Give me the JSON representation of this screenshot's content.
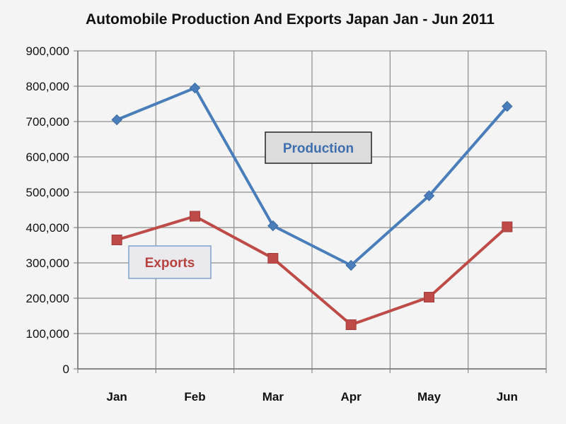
{
  "chart_data": {
    "type": "line",
    "title": "Automobile Production And Exports Japan Jan - Jun 2011",
    "xlabel": "",
    "ylabel": "",
    "categories": [
      "Jan",
      "Feb",
      "Mar",
      "Apr",
      "May",
      "Jun"
    ],
    "ylim": [
      0,
      900000
    ],
    "yticks": [
      0,
      100000,
      200000,
      300000,
      400000,
      500000,
      600000,
      700000,
      800000,
      900000
    ],
    "ytick_labels": [
      "0",
      "100,000",
      "200,000",
      "300,000",
      "400,000",
      "500,000",
      "600,000",
      "700,000",
      "800,000",
      "900,000"
    ],
    "grid": true,
    "legend": "inline labels",
    "series": [
      {
        "name": "Production",
        "color": "#4a7ebb",
        "marker": "diamond",
        "values": [
          705000,
          795000,
          405000,
          293000,
          490000,
          743000
        ]
      },
      {
        "name": "Exports",
        "color": "#be4b48",
        "marker": "square",
        "values": [
          365000,
          432000,
          313000,
          125000,
          203000,
          402000
        ]
      }
    ]
  }
}
